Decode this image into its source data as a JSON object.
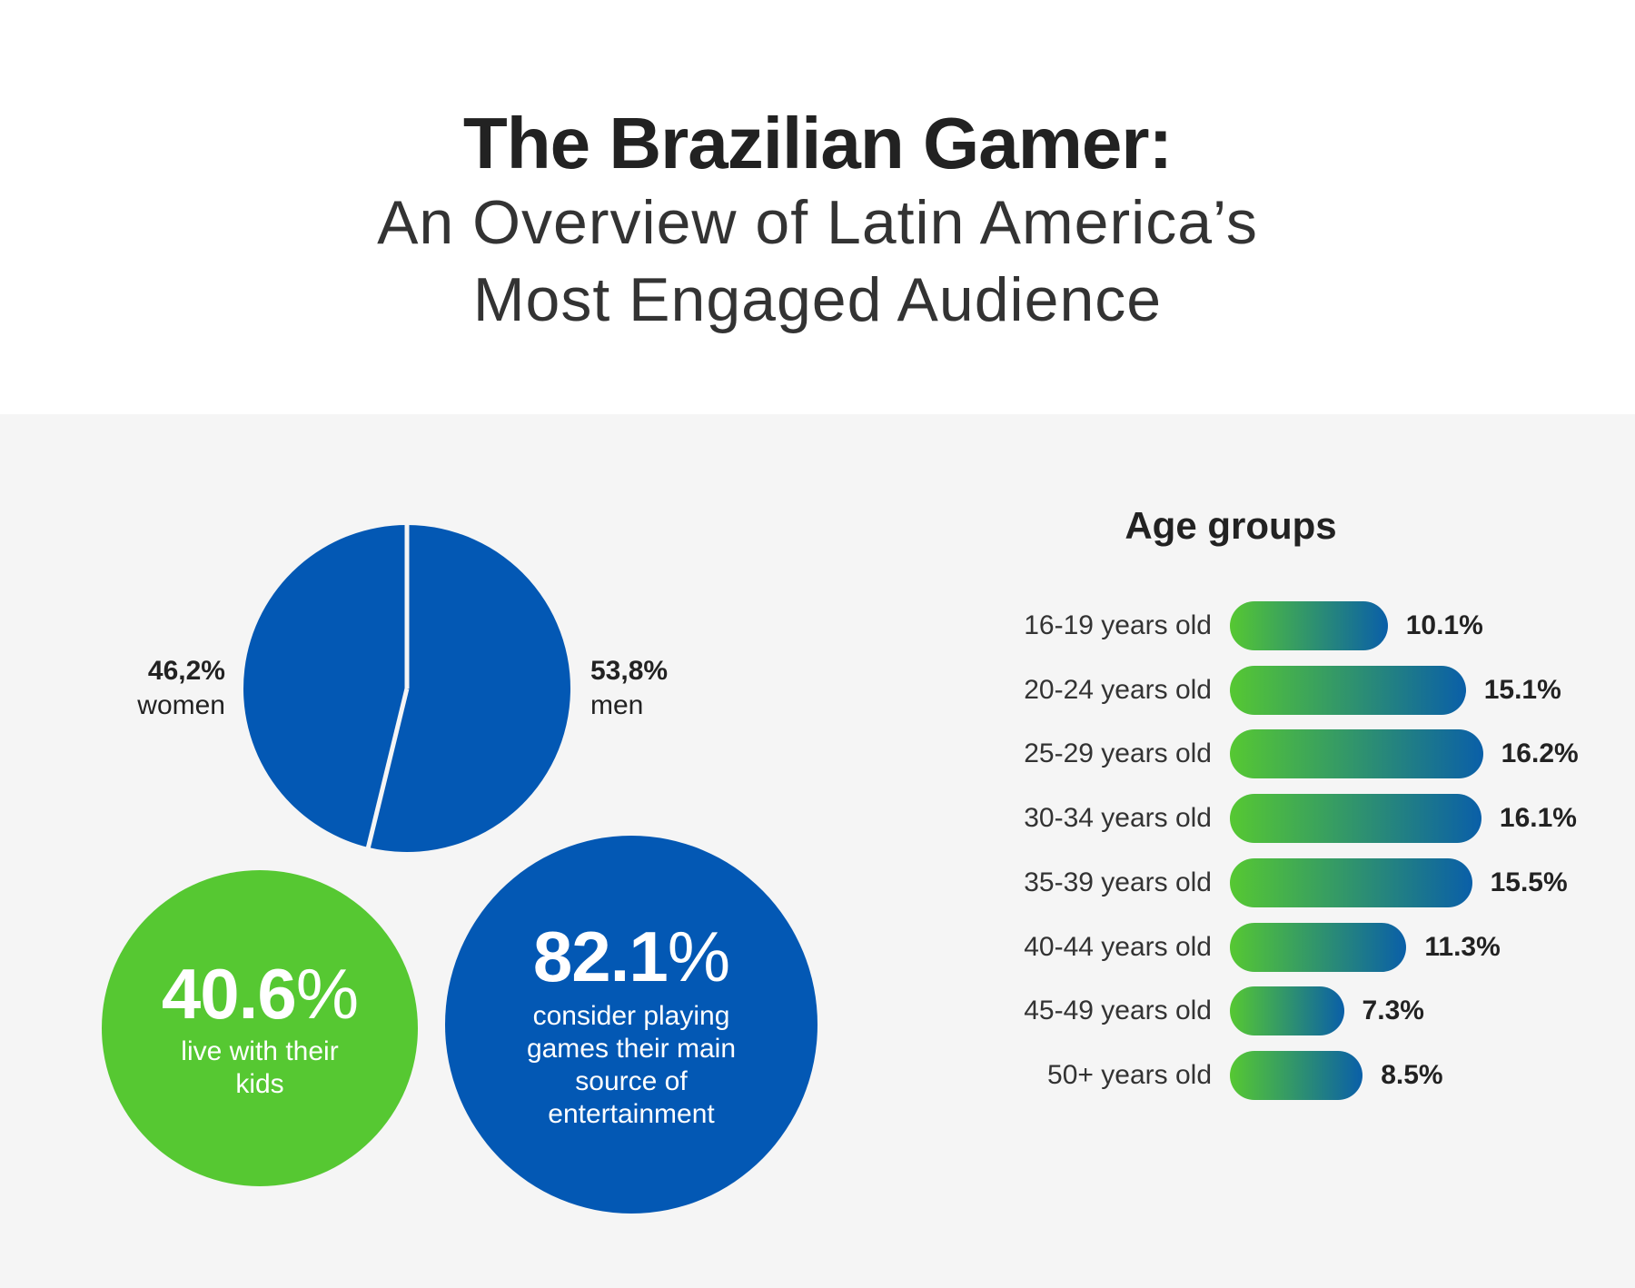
{
  "header": {
    "title": "The Brazilian Gamer:",
    "subtitle_line1": "An Overview of Latin America’s",
    "subtitle_line2": "Most Engaged Audience"
  },
  "gender": {
    "women": {
      "value": "46,2%",
      "label": "women",
      "color": "#0358b4"
    },
    "men": {
      "value": "53,8%",
      "label": "men",
      "color": "#0358b4"
    }
  },
  "stats": {
    "kids": {
      "number": "40.6",
      "unit": "%",
      "description": "live with their kids",
      "color": "#56c832"
    },
    "entertainment": {
      "number": "82.1",
      "unit": "%",
      "description": "consider playing games their main source of entertainment",
      "color": "#0358b4"
    }
  },
  "chart_data": [
    {
      "type": "pie",
      "title": "",
      "categories": [
        "women",
        "men"
      ],
      "values": [
        46.2,
        53.8
      ],
      "labels": [
        "46,2%",
        "53,8%"
      ],
      "colors": [
        "#0358b4",
        "#0358b4"
      ],
      "separator_color": "#f5f5f5"
    },
    {
      "type": "bar",
      "orientation": "horizontal",
      "title": "Age groups",
      "categories": [
        "16-19 years old",
        "20-24 years old",
        "25-29 years old",
        "30-34 years old",
        "35-39 years old",
        "40-44 years old",
        "45-49 years old",
        "50+ years old"
      ],
      "values": [
        10.1,
        15.1,
        16.2,
        16.1,
        15.5,
        11.3,
        7.3,
        8.5
      ],
      "labels": [
        "10.1%",
        "15.1%",
        "16.2%",
        "16.1%",
        "15.5%",
        "11.3%",
        "7.3%",
        "8.5%"
      ],
      "gradient": [
        "#56c832",
        "#0a5fa8"
      ]
    }
  ]
}
